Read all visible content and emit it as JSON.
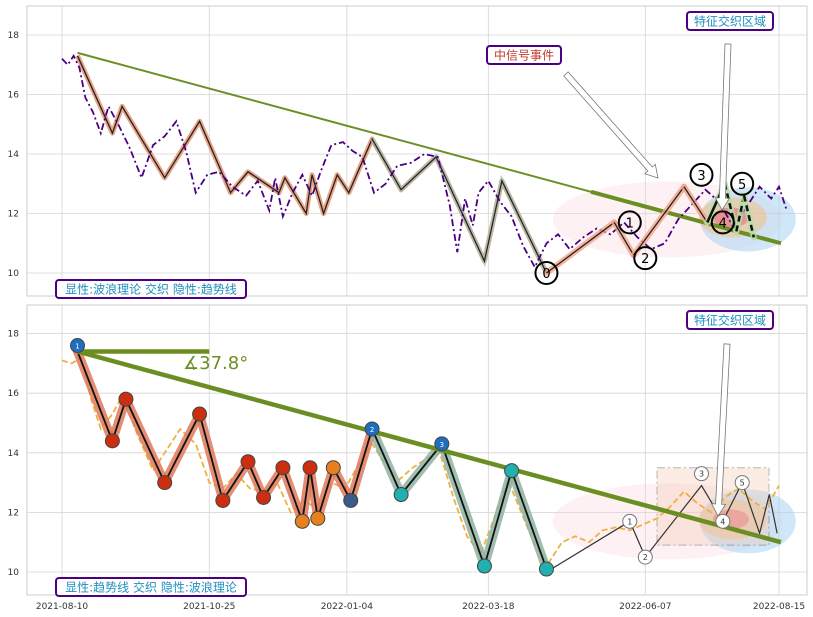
{
  "chart_data": [
    {
      "type": "line",
      "panel": "top",
      "ylim": [
        9.3,
        18.9
      ],
      "yticks": [
        10,
        12,
        14,
        16,
        18
      ],
      "grid": true,
      "caption": "显性:波浪理论 交织 隐性:趋势线",
      "annotations": [
        {
          "text": "特征交织区域"
        },
        {
          "text": "中信号事件"
        }
      ],
      "wave_labels": [
        "0",
        "1",
        "2",
        "3",
        "4",
        "5"
      ],
      "price_series": [
        [
          "2021-08-10",
          17.2
        ],
        [
          "2021-08-13",
          17.0
        ],
        [
          "2021-08-16",
          17.3
        ],
        [
          "2021-08-19",
          16.9
        ],
        [
          "2021-08-22",
          15.9
        ],
        [
          "2021-08-26",
          15.4
        ],
        [
          "2021-08-30",
          14.7
        ],
        [
          "2021-09-03",
          15.6
        ],
        [
          "2021-09-08",
          15.0
        ],
        [
          "2021-09-14",
          14.2
        ],
        [
          "2021-09-20",
          13.2
        ],
        [
          "2021-09-26",
          14.3
        ],
        [
          "2021-10-02",
          14.6
        ],
        [
          "2021-10-08",
          15.1
        ],
        [
          "2021-10-13",
          14.1
        ],
        [
          "2021-10-18",
          12.7
        ],
        [
          "2021-10-24",
          13.3
        ],
        [
          "2021-10-30",
          13.4
        ],
        [
          "2021-11-06",
          12.9
        ],
        [
          "2021-11-13",
          12.6
        ],
        [
          "2021-11-19",
          13.1
        ],
        [
          "2021-11-25",
          12.1
        ],
        [
          "2021-11-28",
          13.2
        ],
        [
          "2021-12-02",
          11.9
        ],
        [
          "2021-12-07",
          12.7
        ],
        [
          "2021-12-12",
          13.3
        ],
        [
          "2021-12-17",
          12.6
        ],
        [
          "2021-12-22",
          13.5
        ],
        [
          "2021-12-27",
          14.3
        ],
        [
          "2022-01-02",
          14.4
        ],
        [
          "2022-01-07",
          14.1
        ],
        [
          "2022-01-12",
          13.9
        ],
        [
          "2022-01-18",
          12.7
        ],
        [
          "2022-01-24",
          13.0
        ],
        [
          "2022-01-30",
          13.6
        ],
        [
          "2022-02-06",
          13.7
        ],
        [
          "2022-02-13",
          14.0
        ],
        [
          "2022-02-20",
          13.9
        ],
        [
          "2022-02-26",
          12.3
        ],
        [
          "2022-03-02",
          10.7
        ],
        [
          "2022-03-06",
          12.5
        ],
        [
          "2022-03-10",
          11.6
        ],
        [
          "2022-03-13",
          12.7
        ],
        [
          "2022-03-18",
          13.1
        ],
        [
          "2022-03-24",
          12.4
        ],
        [
          "2022-03-30",
          11.9
        ],
        [
          "2022-04-05",
          10.9
        ],
        [
          "2022-04-11",
          10.2
        ],
        [
          "2022-04-17",
          11.0
        ],
        [
          "2022-04-23",
          11.3
        ],
        [
          "2022-04-29",
          10.8
        ],
        [
          "2022-05-06",
          11.2
        ],
        [
          "2022-05-13",
          11.5
        ],
        [
          "2022-05-20",
          11.3
        ],
        [
          "2022-05-27",
          11.7
        ],
        [
          "2022-06-03",
          11.2
        ],
        [
          "2022-06-10",
          10.8
        ],
        [
          "2022-06-17",
          11.0
        ],
        [
          "2022-06-24",
          11.8
        ],
        [
          "2022-07-01",
          12.3
        ],
        [
          "2022-07-08",
          12.8
        ],
        [
          "2022-07-15",
          12.4
        ],
        [
          "2022-07-22",
          11.6
        ],
        [
          "2022-07-29",
          12.2
        ],
        [
          "2022-08-05",
          12.9
        ],
        [
          "2022-08-11",
          12.5
        ],
        [
          "2022-08-15",
          12.9
        ],
        [
          "2022-08-19",
          12.1
        ]
      ],
      "wave_path": [
        [
          "2021-08-18",
          17.3
        ],
        [
          "2021-09-05",
          14.7
        ],
        [
          "2021-09-10",
          15.6
        ],
        [
          "2021-10-02",
          13.2
        ],
        [
          "2021-10-20",
          15.1
        ],
        [
          "2021-11-05",
          12.7
        ],
        [
          "2021-11-14",
          13.4
        ],
        [
          "2021-11-30",
          12.7
        ],
        [
          "2021-12-03",
          13.2
        ],
        [
          "2021-12-14",
          12.0
        ],
        [
          "2021-12-17",
          13.3
        ],
        [
          "2021-12-23",
          12.0
        ],
        [
          "2021-12-30",
          13.3
        ],
        [
          "2022-01-05",
          12.7
        ],
        [
          "2022-01-17",
          14.5
        ],
        [
          "2022-02-01",
          12.8
        ],
        [
          "2022-02-19",
          13.9
        ],
        [
          "2022-03-16",
          10.4
        ],
        [
          "2022-03-25",
          13.1
        ],
        [
          "2022-04-17",
          10.0
        ]
      ],
      "wave_segments": [
        [
          "2022-04-17",
          10.0
        ],
        [
          "2022-05-22",
          11.7
        ],
        [
          "2022-06-01",
          10.6
        ],
        [
          "2022-06-27",
          12.9
        ],
        [
          "2022-07-09",
          11.7
        ],
        [
          "2022-07-18",
          13.0
        ],
        [
          "2022-07-24",
          11.4
        ],
        [
          "2022-07-28",
          12.6
        ],
        [
          "2022-08-02",
          11.2
        ]
      ],
      "wave_label_points": [
        [
          "2022-04-17",
          10.0
        ],
        [
          "2022-05-30",
          11.7
        ],
        [
          "2022-06-07",
          10.5
        ],
        [
          "2022-07-06",
          13.3
        ],
        [
          "2022-07-17",
          11.7
        ],
        [
          "2022-07-27",
          13.0
        ]
      ],
      "trendline": [
        [
          "2021-08-18",
          17.4
        ],
        [
          "2022-08-16",
          11.0
        ]
      ]
    },
    {
      "type": "line",
      "panel": "bottom",
      "ylim": [
        9.5,
        18.9
      ],
      "yticks": [
        10,
        12,
        14,
        16,
        18
      ],
      "xticks": [
        "2021-08-10",
        "2021-10-25",
        "2022-01-04",
        "2022-03-18",
        "2022-06-07",
        "2022-08-15"
      ],
      "grid": true,
      "caption": "显性:趋势线 交织 隐性:波浪理论",
      "angle_label": "∡37.8°",
      "annotations": [
        {
          "text": "特征交织区域"
        }
      ],
      "trend_markers": [
        "1",
        "2",
        "3"
      ],
      "wave_labels": [
        "1",
        "2",
        "3",
        "4",
        "5"
      ],
      "trendline": [
        [
          "2021-08-18",
          17.4
        ],
        [
          "2022-08-16",
          11.0
        ]
      ],
      "horizontal_ref": [
        [
          "2021-08-18",
          17.4
        ],
        [
          "2021-10-25",
          17.4
        ]
      ],
      "trend_path": [
        [
          "2021-08-18",
          17.4
        ],
        [
          "2021-09-05",
          14.4
        ],
        [
          "2021-09-12",
          15.8
        ],
        [
          "2021-10-02",
          13.0
        ],
        [
          "2021-10-20",
          15.3
        ],
        [
          "2021-11-01",
          12.4
        ],
        [
          "2021-11-14",
          13.7
        ],
        [
          "2021-11-22",
          12.5
        ],
        [
          "2021-12-02",
          13.5
        ],
        [
          "2021-12-12",
          11.7
        ],
        [
          "2021-12-16",
          13.5
        ],
        [
          "2021-12-20",
          11.8
        ],
        [
          "2021-12-28",
          13.5
        ],
        [
          "2022-01-06",
          12.4
        ],
        [
          "2022-01-17",
          14.8
        ],
        [
          "2022-02-01",
          12.6
        ],
        [
          "2022-02-22",
          14.3
        ],
        [
          "2022-03-16",
          10.2
        ],
        [
          "2022-03-30",
          13.4
        ],
        [
          "2022-04-17",
          10.1
        ]
      ],
      "marker_points": [
        [
          "2021-08-18",
          17.6
        ],
        [
          "2021-09-05",
          14.4
        ],
        [
          "2021-09-12",
          15.8
        ],
        [
          "2021-10-02",
          13.0
        ],
        [
          "2021-10-20",
          15.3
        ],
        [
          "2021-11-01",
          12.4
        ],
        [
          "2021-11-14",
          13.7
        ],
        [
          "2021-11-22",
          12.5
        ],
        [
          "2021-12-02",
          13.5
        ],
        [
          "2021-12-12",
          11.7
        ],
        [
          "2021-12-16",
          13.5
        ],
        [
          "2021-12-20",
          11.8
        ],
        [
          "2021-12-28",
          13.5
        ],
        [
          "2022-01-06",
          12.4
        ],
        [
          "2022-01-17",
          14.8
        ],
        [
          "2022-02-01",
          12.6
        ],
        [
          "2022-02-22",
          14.3
        ],
        [
          "2022-03-16",
          10.2
        ],
        [
          "2022-03-30",
          13.4
        ],
        [
          "2022-04-17",
          10.1
        ]
      ],
      "price_series": [
        [
          "2021-08-10",
          17.1
        ],
        [
          "2021-08-15",
          17.0
        ],
        [
          "2021-08-20",
          17.2
        ],
        [
          "2021-08-25",
          15.8
        ],
        [
          "2021-08-30",
          14.8
        ],
        [
          "2021-09-05",
          15.3
        ],
        [
          "2021-09-10",
          15.9
        ],
        [
          "2021-09-18",
          14.6
        ],
        [
          "2021-09-26",
          13.4
        ],
        [
          "2021-10-02",
          14.0
        ],
        [
          "2021-10-10",
          14.8
        ],
        [
          "2021-10-18",
          14.3
        ],
        [
          "2021-10-25",
          13.0
        ],
        [
          "2021-11-01",
          12.8
        ],
        [
          "2021-11-08",
          13.3
        ],
        [
          "2021-11-15",
          12.8
        ],
        [
          "2021-11-22",
          12.7
        ],
        [
          "2021-11-29",
          13.0
        ],
        [
          "2021-12-06",
          12.0
        ],
        [
          "2021-12-13",
          12.4
        ],
        [
          "2021-12-20",
          12.1
        ],
        [
          "2021-12-27",
          13.0
        ],
        [
          "2022-01-03",
          12.8
        ],
        [
          "2022-01-10",
          13.6
        ],
        [
          "2022-01-17",
          14.3
        ],
        [
          "2022-01-24",
          13.6
        ],
        [
          "2022-01-31",
          13.1
        ],
        [
          "2022-02-07",
          13.5
        ],
        [
          "2022-02-14",
          13.8
        ],
        [
          "2022-02-21",
          14.0
        ],
        [
          "2022-02-28",
          12.5
        ],
        [
          "2022-03-07",
          11.2
        ],
        [
          "2022-03-14",
          10.6
        ],
        [
          "2022-03-21",
          11.8
        ],
        [
          "2022-03-28",
          13.1
        ],
        [
          "2022-04-04",
          12.0
        ],
        [
          "2022-04-11",
          10.9
        ],
        [
          "2022-04-18",
          10.3
        ],
        [
          "2022-04-25",
          11.0
        ],
        [
          "2022-05-02",
          11.2
        ],
        [
          "2022-05-09",
          11.0
        ],
        [
          "2022-05-16",
          11.4
        ],
        [
          "2022-05-23",
          11.5
        ],
        [
          "2022-05-30",
          11.4
        ],
        [
          "2022-06-06",
          11.6
        ],
        [
          "2022-06-13",
          11.8
        ],
        [
          "2022-06-20",
          12.2
        ],
        [
          "2022-06-27",
          12.7
        ],
        [
          "2022-07-04",
          12.3
        ],
        [
          "2022-07-11",
          12.0
        ],
        [
          "2022-07-18",
          12.5
        ],
        [
          "2022-07-25",
          12.8
        ],
        [
          "2022-08-01",
          12.4
        ],
        [
          "2022-08-08",
          12.1
        ],
        [
          "2022-08-15",
          12.9
        ]
      ],
      "wave_segments": [
        [
          "2022-04-17",
          10.0
        ],
        [
          "2022-05-30",
          11.7
        ],
        [
          "2022-06-07",
          10.5
        ],
        [
          "2022-07-06",
          12.9
        ],
        [
          "2022-07-17",
          11.7
        ],
        [
          "2022-07-27",
          13.0
        ],
        [
          "2022-08-05",
          11.3
        ],
        [
          "2022-08-10",
          12.6
        ],
        [
          "2022-08-14",
          11.3
        ]
      ],
      "wave_label_points": [
        [
          "2022-05-30",
          11.7
        ],
        [
          "2022-06-07",
          10.5
        ],
        [
          "2022-07-06",
          13.3
        ],
        [
          "2022-07-17",
          11.7
        ],
        [
          "2022-07-27",
          13.0
        ]
      ]
    }
  ]
}
